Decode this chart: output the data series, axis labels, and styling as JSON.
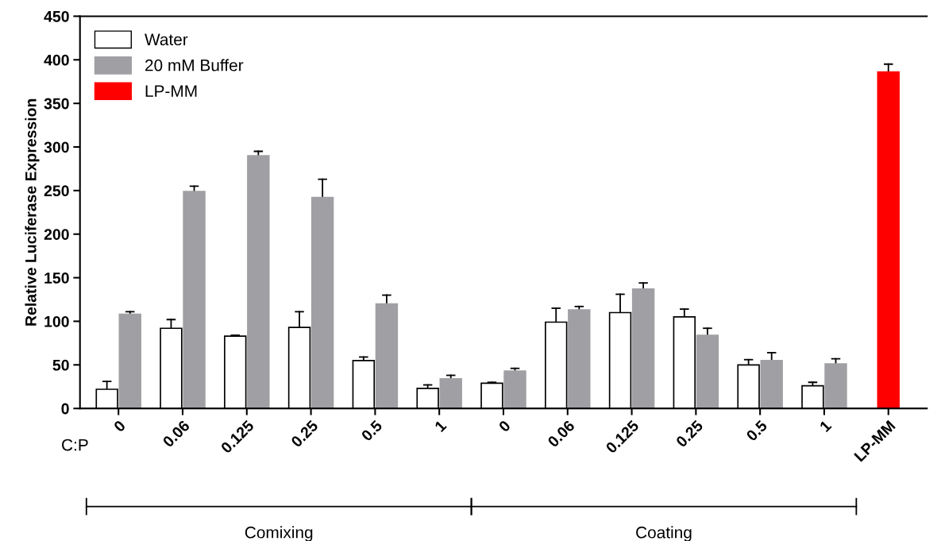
{
  "chart_data": {
    "type": "bar",
    "ylabel": "Relative Luciferase Expression",
    "categories": [
      "0",
      "0.06",
      "0.125",
      "0.25",
      "0.5",
      "1",
      "0",
      "0.06",
      "0.125",
      "0.25",
      "0.5",
      "1",
      "LP-MM"
    ],
    "series": [
      {
        "name": "Water",
        "color": "#ffffff",
        "values": [
          22,
          92,
          83,
          93,
          55,
          23,
          29,
          99,
          110,
          105,
          50,
          26,
          null
        ],
        "errors": [
          [
            22,
            31
          ],
          [
            92,
            102
          ],
          [
            83,
            84
          ],
          [
            93,
            111
          ],
          [
            55,
            59
          ],
          [
            23,
            27
          ],
          [
            29,
            30
          ],
          [
            99,
            115
          ],
          [
            110,
            131
          ],
          [
            105,
            114
          ],
          [
            50,
            56
          ],
          [
            26,
            30
          ],
          null
        ]
      },
      {
        "name": "20 mM Buffer",
        "color": "#a0a0a4",
        "values": [
          108,
          249,
          290,
          242,
          120,
          34,
          43,
          113,
          137,
          84,
          55,
          51,
          null
        ],
        "errors": [
          [
            108,
            111
          ],
          [
            249,
            255
          ],
          [
            290,
            295
          ],
          [
            242,
            263
          ],
          [
            120,
            130
          ],
          [
            34,
            38
          ],
          [
            43,
            46
          ],
          [
            113,
            117
          ],
          [
            137,
            144
          ],
          [
            84,
            92
          ],
          [
            55,
            64
          ],
          [
            51,
            57
          ],
          null
        ]
      },
      {
        "name": "LP-MM",
        "color": "#ff0000",
        "values": [
          null,
          null,
          null,
          null,
          null,
          null,
          null,
          null,
          null,
          null,
          null,
          null,
          386
        ],
        "errors": [
          null,
          null,
          null,
          null,
          null,
          null,
          null,
          null,
          null,
          null,
          null,
          null,
          [
            386,
            395
          ]
        ]
      }
    ],
    "ylim": [
      0,
      450
    ],
    "yticks": [
      0,
      50,
      100,
      150,
      200,
      250,
      300,
      350,
      400,
      450
    ],
    "grid": false,
    "legend": "top left",
    "annotations": [
      "C:P",
      "Comixing",
      "Coating"
    ]
  }
}
